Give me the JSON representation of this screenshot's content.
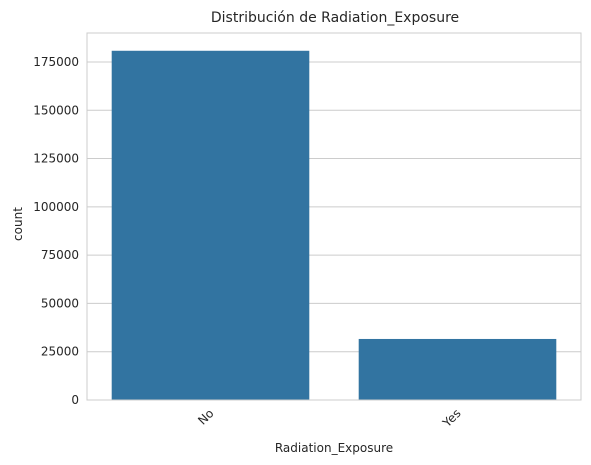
{
  "chart_data": {
    "type": "bar",
    "title": "Distribución de Radiation_Exposure",
    "xlabel": "Radiation_Exposure",
    "ylabel": "count",
    "categories": [
      "No",
      "Yes"
    ],
    "values": [
      180800,
      31600
    ],
    "ylim": [
      0,
      190000
    ],
    "yticks": [
      0,
      25000,
      50000,
      75000,
      100000,
      125000,
      150000,
      175000
    ],
    "grid": true,
    "bar_color": "#3274a1",
    "grid_color": "#cccccc",
    "spine_color": "#cccccc"
  }
}
